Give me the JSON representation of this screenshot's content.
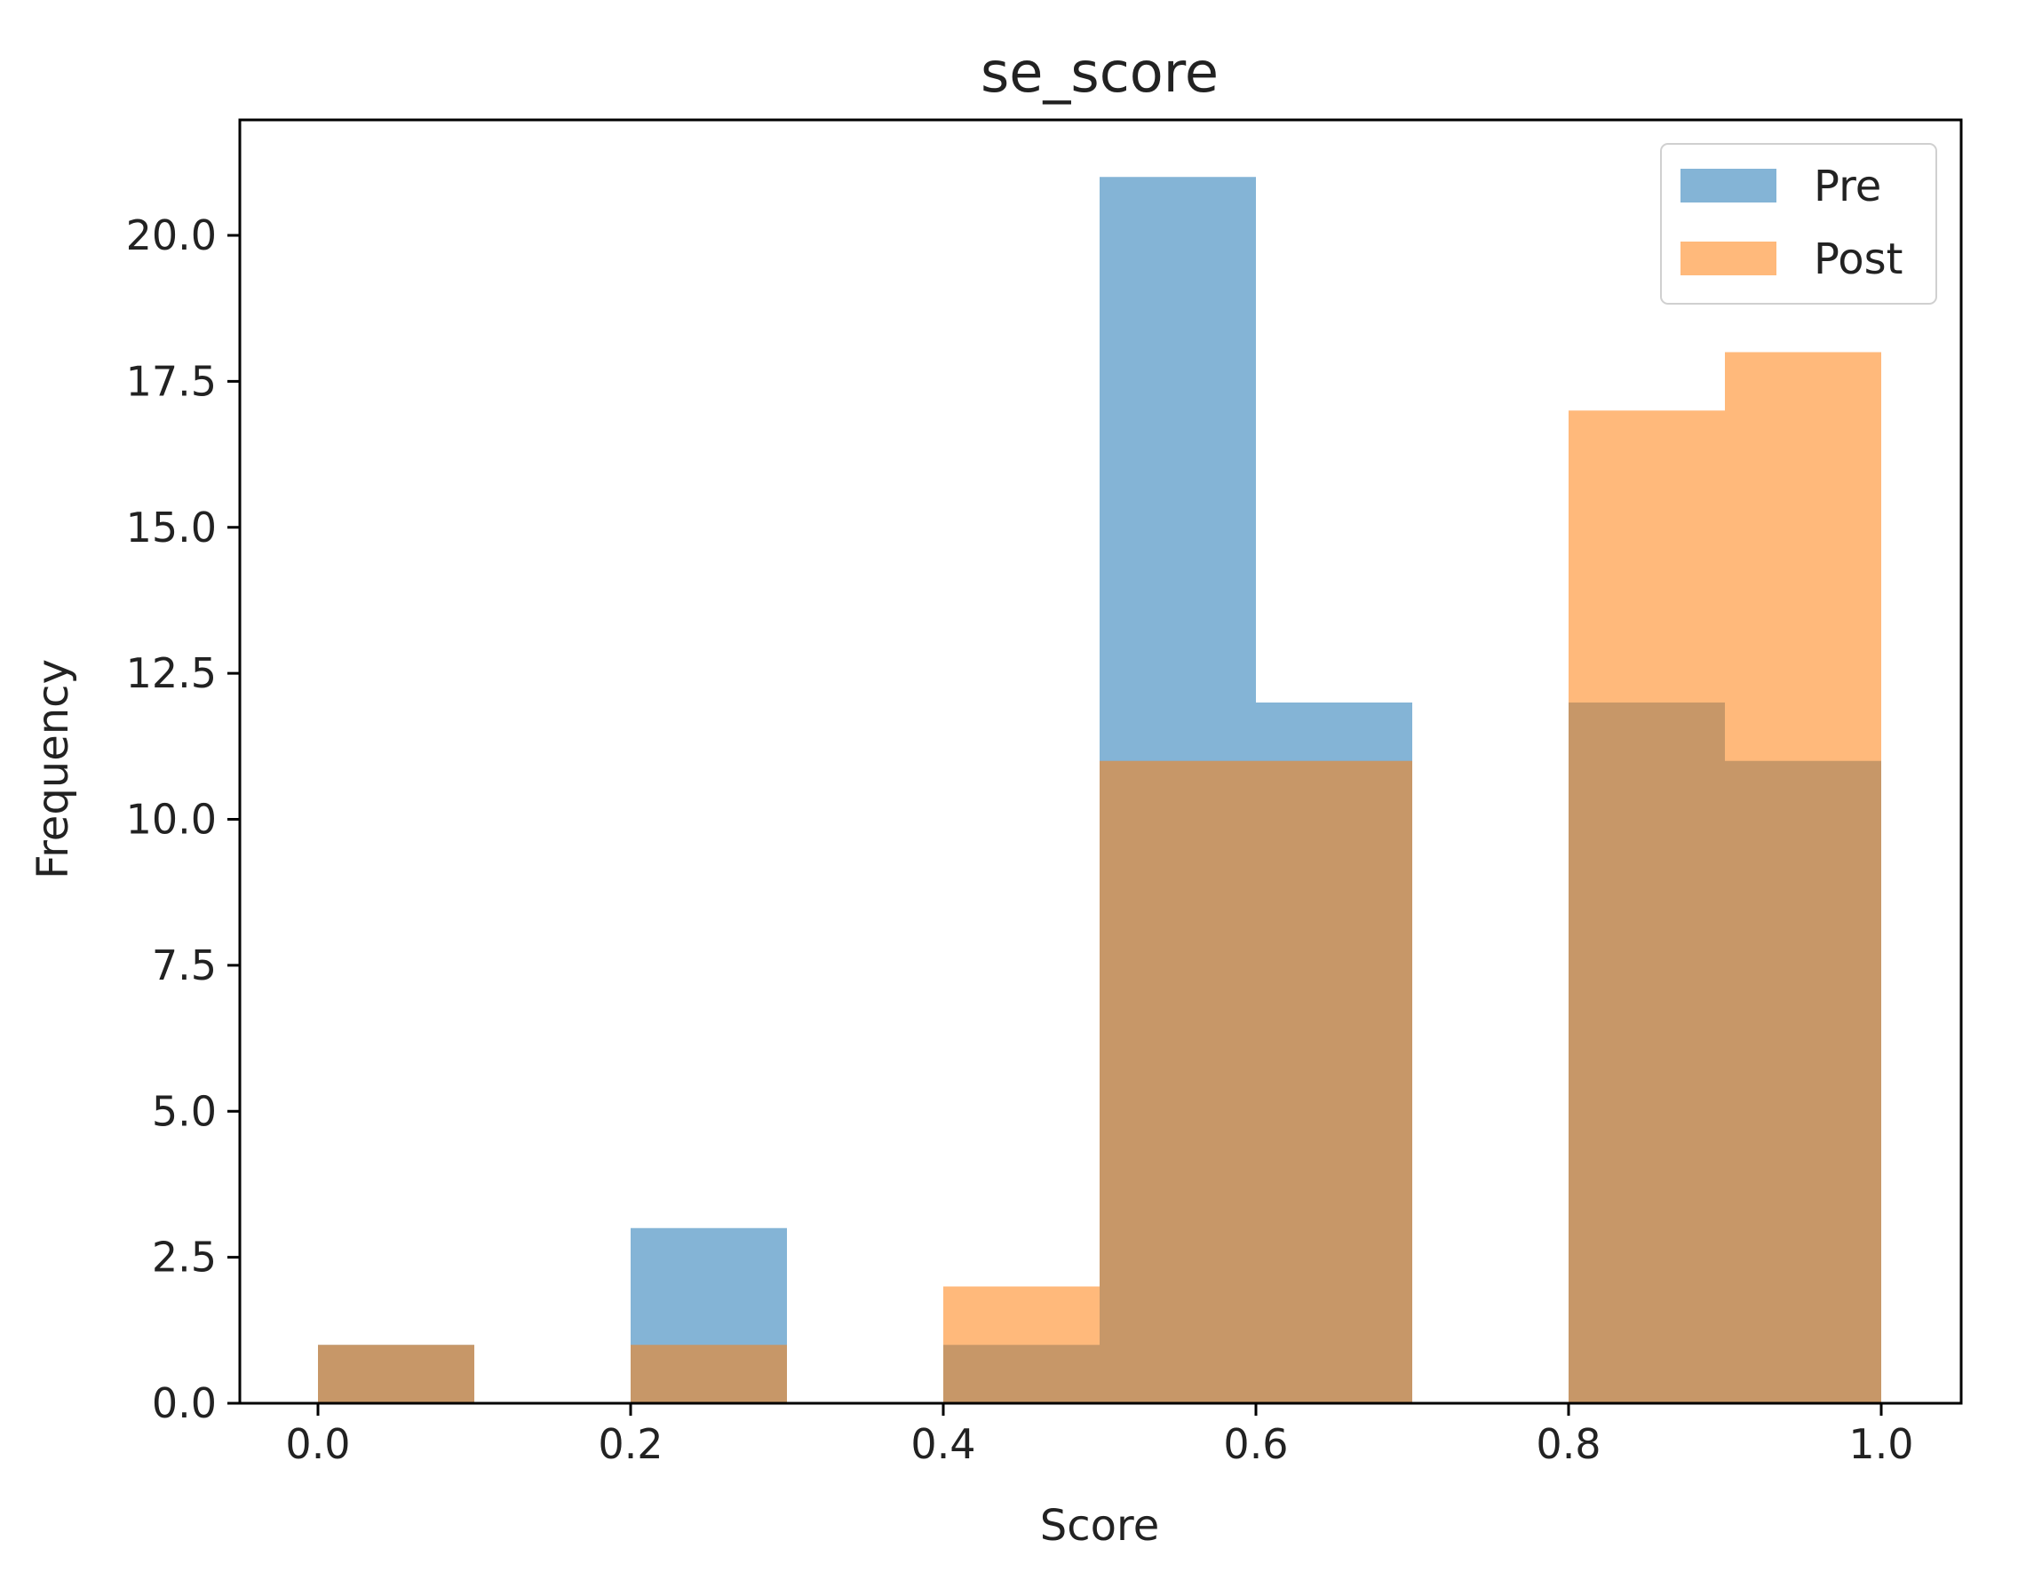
{
  "chart_data": {
    "type": "bar",
    "title": "se_score",
    "xlabel": "Score",
    "ylabel": "Frequency",
    "xlim": [
      -0.05,
      1.05
    ],
    "ylim": [
      0,
      21.0
    ],
    "x_ticks": [
      0.0,
      0.2,
      0.4,
      0.6,
      0.8,
      1.0
    ],
    "x_tick_labels": [
      "0.0",
      "0.2",
      "0.4",
      "0.6",
      "0.8",
      "1.0"
    ],
    "y_ticks": [
      0,
      2.5,
      5,
      7.5,
      10,
      12.5,
      15,
      17.5,
      20
    ],
    "y_tick_labels": [
      "0.0",
      "2.5",
      "5.0",
      "7.5",
      "10.0",
      "12.5",
      "15.0",
      "17.5",
      "20.0"
    ],
    "bin_edges": [
      0.0,
      0.1,
      0.2,
      0.3,
      0.4,
      0.5,
      0.6,
      0.7,
      0.8,
      0.9,
      1.0
    ],
    "series": [
      {
        "name": "Pre",
        "color": "#1f77b4",
        "opacity": 0.55,
        "values": [
          1,
          0,
          3,
          0,
          1,
          21,
          12,
          0,
          12,
          11
        ]
      },
      {
        "name": "Post",
        "color": "#ff7f0e",
        "opacity": 0.55,
        "values": [
          1,
          0,
          1,
          0,
          2,
          11,
          11,
          0,
          17,
          18
        ]
      }
    ],
    "legend": "top-right",
    "grid": false
  }
}
